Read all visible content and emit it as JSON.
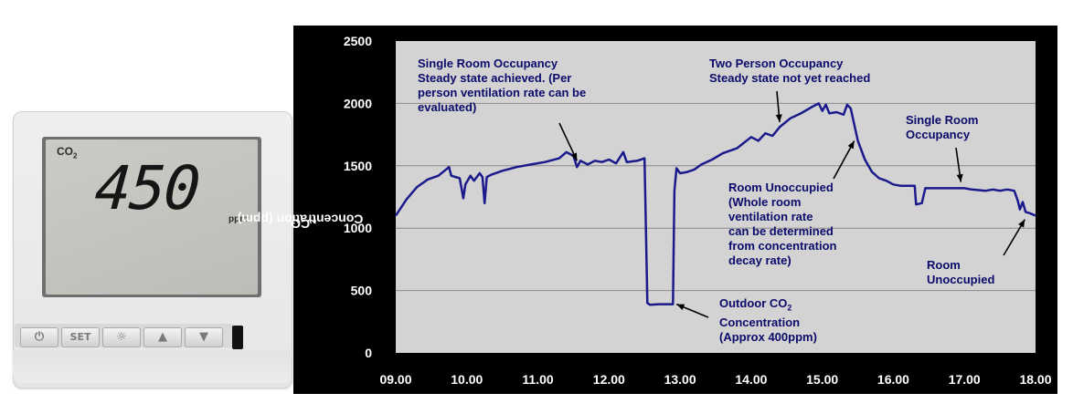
{
  "device": {
    "co2_label": "CO",
    "co2_sub": "2",
    "reading": "450",
    "unit": "ppm",
    "buttons": [
      {
        "icon": "power-icon",
        "glyph": "⏻"
      },
      {
        "icon": "set-button",
        "glyph": "SET"
      },
      {
        "icon": "sun-icon",
        "glyph": "☼"
      },
      {
        "icon": "up-arrow-icon",
        "glyph": "▲"
      },
      {
        "icon": "down-arrow-icon",
        "glyph": "▼"
      }
    ]
  },
  "chart_data": {
    "type": "line",
    "ylabel_main": "CO",
    "ylabel_sub": "2",
    "ylabel_rest": " Concentration (ppm)",
    "xlabel": "",
    "xlim": [
      9.0,
      18.0
    ],
    "ylim": [
      0,
      2500
    ],
    "x_ticks": [
      "09.00",
      "10.00",
      "11.00",
      "12.00",
      "13.00",
      "14.00",
      "15.00",
      "16.00",
      "17.00",
      "18.00"
    ],
    "y_ticks": [
      "0",
      "500",
      "1000",
      "1500",
      "2000",
      "2500"
    ],
    "grid": true,
    "colors": {
      "background": "#000000",
      "plot_area": "#d3d3d3",
      "line": "#1a1a8c",
      "text": "#ffffff",
      "annotation": "#0b0b6b"
    },
    "series": [
      {
        "values": [
          [
            9.0,
            1100
          ],
          [
            9.15,
            1230
          ],
          [
            9.3,
            1330
          ],
          [
            9.45,
            1390
          ],
          [
            9.6,
            1420
          ],
          [
            9.75,
            1490
          ],
          [
            9.78,
            1420
          ],
          [
            9.9,
            1400
          ],
          [
            9.95,
            1240
          ],
          [
            9.98,
            1350
          ],
          [
            10.05,
            1420
          ],
          [
            10.1,
            1380
          ],
          [
            10.18,
            1440
          ],
          [
            10.22,
            1410
          ],
          [
            10.25,
            1200
          ],
          [
            10.28,
            1410
          ],
          [
            10.35,
            1430
          ],
          [
            10.5,
            1460
          ],
          [
            10.7,
            1490
          ],
          [
            10.9,
            1510
          ],
          [
            11.1,
            1530
          ],
          [
            11.3,
            1560
          ],
          [
            11.4,
            1610
          ],
          [
            11.5,
            1580
          ],
          [
            11.55,
            1490
          ],
          [
            11.6,
            1540
          ],
          [
            11.7,
            1510
          ],
          [
            11.8,
            1540
          ],
          [
            11.9,
            1530
          ],
          [
            12.0,
            1550
          ],
          [
            12.1,
            1520
          ],
          [
            12.2,
            1610
          ],
          [
            12.25,
            1530
          ],
          [
            12.4,
            1540
          ],
          [
            12.5,
            1560
          ],
          [
            12.54,
            400
          ],
          [
            12.58,
            385
          ],
          [
            12.7,
            390
          ],
          [
            12.9,
            390
          ],
          [
            12.92,
            1300
          ],
          [
            12.95,
            1480
          ],
          [
            13.0,
            1440
          ],
          [
            13.1,
            1450
          ],
          [
            13.2,
            1470
          ],
          [
            13.3,
            1510
          ],
          [
            13.45,
            1550
          ],
          [
            13.6,
            1600
          ],
          [
            13.8,
            1640
          ],
          [
            14.0,
            1730
          ],
          [
            14.1,
            1700
          ],
          [
            14.2,
            1760
          ],
          [
            14.3,
            1740
          ],
          [
            14.4,
            1810
          ],
          [
            14.55,
            1880
          ],
          [
            14.7,
            1920
          ],
          [
            14.85,
            1970
          ],
          [
            14.95,
            2000
          ],
          [
            15.0,
            1940
          ],
          [
            15.05,
            1990
          ],
          [
            15.1,
            1920
          ],
          [
            15.2,
            1930
          ],
          [
            15.3,
            1910
          ],
          [
            15.35,
            1990
          ],
          [
            15.4,
            1960
          ],
          [
            15.5,
            1700
          ],
          [
            15.6,
            1550
          ],
          [
            15.7,
            1450
          ],
          [
            15.8,
            1400
          ],
          [
            15.9,
            1380
          ],
          [
            16.0,
            1350
          ],
          [
            16.1,
            1340
          ],
          [
            16.2,
            1340
          ],
          [
            16.3,
            1340
          ],
          [
            16.32,
            1190
          ],
          [
            16.4,
            1200
          ],
          [
            16.45,
            1320
          ],
          [
            16.6,
            1320
          ],
          [
            16.8,
            1320
          ],
          [
            17.0,
            1320
          ],
          [
            17.1,
            1310
          ],
          [
            17.3,
            1300
          ],
          [
            17.4,
            1310
          ],
          [
            17.5,
            1300
          ],
          [
            17.6,
            1310
          ],
          [
            17.7,
            1300
          ],
          [
            17.75,
            1220
          ],
          [
            17.78,
            1150
          ],
          [
            17.82,
            1210
          ],
          [
            17.86,
            1130
          ],
          [
            17.92,
            1120
          ],
          [
            18.0,
            1100
          ]
        ]
      }
    ],
    "annotations": [
      {
        "lines": [
          "Single Room Occupancy",
          "Steady state achieved. (Per",
          "person ventilation rate can be",
          "evaluated)"
        ],
        "point_to": [
          11.55,
          1540
        ]
      },
      {
        "lines": [
          "Two Person Occupancy",
          "Steady state not yet reached"
        ],
        "point_to": [
          14.4,
          1850
        ]
      },
      {
        "lines": [
          "Single Room",
          "Occupancy"
        ],
        "point_to": [
          16.95,
          1370
        ]
      },
      {
        "lines": [
          "Room Unoccupied",
          "(Whole room",
          "ventilation rate",
          "can be determined",
          "from concentration",
          "decay rate)"
        ],
        "point_to": [
          15.45,
          1700
        ]
      },
      {
        "lines": [
          "Outdoor CO",
          "Concentration",
          "(Approx 400ppm)"
        ],
        "point_to": [
          12.95,
          390
        ]
      },
      {
        "lines": [
          "Room",
          "Unoccupied"
        ],
        "point_to": [
          17.85,
          1070
        ]
      }
    ],
    "co2_sub_in_annotation": "2"
  }
}
